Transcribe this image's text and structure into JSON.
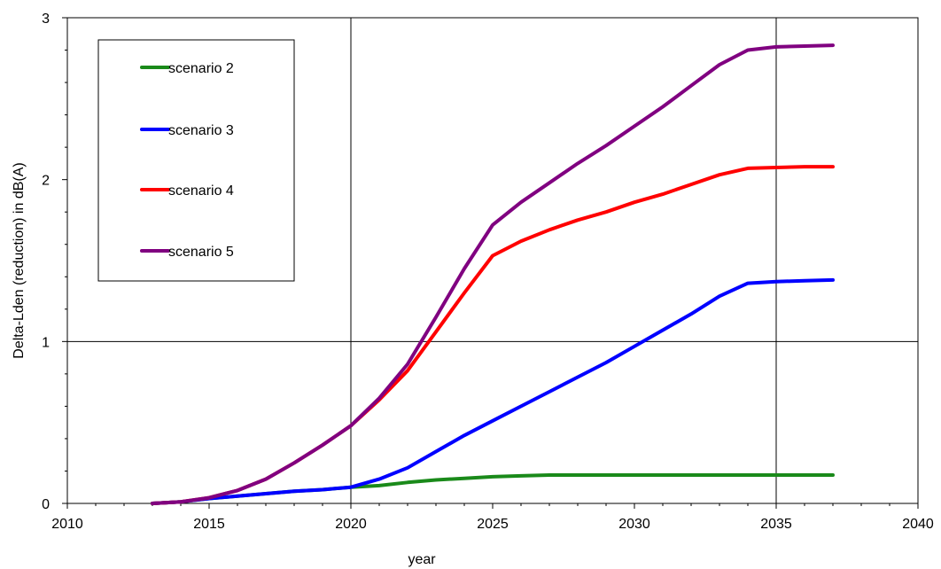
{
  "chart_data": {
    "type": "line",
    "xlabel": "year",
    "ylabel": "Delta-Lden (reduction) in dB(A)",
    "xlim": [
      2010,
      2040
    ],
    "ylim": [
      0,
      3
    ],
    "xticks": [
      "2010",
      "2015",
      "2020",
      "2025",
      "2030",
      "2035",
      "2040"
    ],
    "yticks": [
      "0",
      "1",
      "2",
      "3"
    ],
    "grid": "vertical lines at 2020 and 2035, horizontal line at 1",
    "legend_position": "top-left",
    "series": [
      {
        "name": "scenario 2",
        "color": "#1a8a1a",
        "x": [
          2013,
          2014,
          2015,
          2016,
          2017,
          2018,
          2019,
          2020,
          2021,
          2022,
          2023,
          2024,
          2025,
          2026,
          2027,
          2028,
          2029,
          2030,
          2031,
          2032,
          2033,
          2034,
          2035,
          2036,
          2037
        ],
        "y": [
          0.0,
          0.01,
          0.03,
          0.045,
          0.06,
          0.075,
          0.085,
          0.1,
          0.11,
          0.13,
          0.145,
          0.155,
          0.165,
          0.17,
          0.175,
          0.175,
          0.175,
          0.175,
          0.175,
          0.175,
          0.175,
          0.175,
          0.175,
          0.175,
          0.175
        ]
      },
      {
        "name": "scenario 3",
        "color": "#0000ff",
        "x": [
          2013,
          2014,
          2015,
          2016,
          2017,
          2018,
          2019,
          2020,
          2021,
          2022,
          2023,
          2024,
          2025,
          2026,
          2027,
          2028,
          2029,
          2030,
          2031,
          2032,
          2033,
          2034,
          2035,
          2036,
          2037
        ],
        "y": [
          0.0,
          0.01,
          0.03,
          0.045,
          0.06,
          0.075,
          0.085,
          0.1,
          0.15,
          0.22,
          0.32,
          0.42,
          0.51,
          0.6,
          0.69,
          0.78,
          0.87,
          0.97,
          1.07,
          1.17,
          1.28,
          1.36,
          1.37,
          1.375,
          1.38
        ]
      },
      {
        "name": "scenario 4",
        "color": "#ff0000",
        "x": [
          2013,
          2014,
          2015,
          2016,
          2017,
          2018,
          2019,
          2020,
          2021,
          2022,
          2023,
          2024,
          2025,
          2026,
          2027,
          2028,
          2029,
          2030,
          2031,
          2032,
          2033,
          2034,
          2035,
          2036,
          2037
        ],
        "y": [
          0.0,
          0.01,
          0.035,
          0.08,
          0.15,
          0.25,
          0.36,
          0.48,
          0.64,
          0.82,
          1.06,
          1.3,
          1.53,
          1.62,
          1.69,
          1.75,
          1.8,
          1.86,
          1.91,
          1.97,
          2.03,
          2.07,
          2.075,
          2.08,
          2.08
        ]
      },
      {
        "name": "scenario 5",
        "color": "#800080",
        "x": [
          2013,
          2014,
          2015,
          2016,
          2017,
          2018,
          2019,
          2020,
          2021,
          2022,
          2023,
          2024,
          2025,
          2026,
          2027,
          2028,
          2029,
          2030,
          2031,
          2032,
          2033,
          2034,
          2035,
          2036,
          2037
        ],
        "y": [
          0.0,
          0.01,
          0.035,
          0.08,
          0.15,
          0.25,
          0.36,
          0.48,
          0.65,
          0.86,
          1.15,
          1.45,
          1.72,
          1.86,
          1.98,
          2.1,
          2.21,
          2.33,
          2.45,
          2.58,
          2.71,
          2.8,
          2.82,
          2.825,
          2.83
        ]
      }
    ]
  }
}
